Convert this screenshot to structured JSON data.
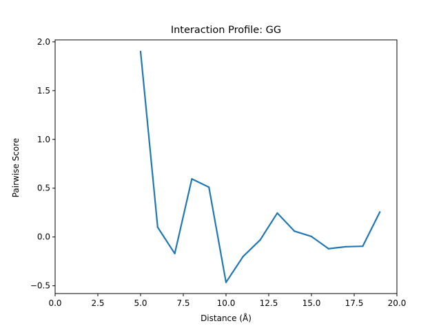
{
  "chart_data": {
    "type": "line",
    "title": "Interaction Profile: GG",
    "xlabel": "Distance (Å)",
    "ylabel": "Pairwise Score",
    "xlim": [
      0.0,
      20.0
    ],
    "ylim": [
      -0.58,
      2.02
    ],
    "x_ticks": [
      0.0,
      2.5,
      5.0,
      7.5,
      10.0,
      12.5,
      15.0,
      17.5,
      20.0
    ],
    "x_tick_labels": [
      "0.0",
      "2.5",
      "5.0",
      "7.5",
      "10.0",
      "12.5",
      "15.0",
      "17.5",
      "20.0"
    ],
    "y_ticks": [
      -0.5,
      0.0,
      0.5,
      1.0,
      1.5,
      2.0
    ],
    "y_tick_labels": [
      "−0.5",
      "0.0",
      "0.5",
      "1.0",
      "1.5",
      "2.0"
    ],
    "grid": false,
    "series": [
      {
        "color": "#1f77b4",
        "x": [
          5,
          6,
          7,
          8,
          9,
          10,
          11,
          12,
          13,
          14,
          15,
          16,
          17,
          18,
          19
        ],
        "y": [
          1.9,
          0.1,
          -0.17,
          0.595,
          0.51,
          -0.465,
          -0.2,
          -0.03,
          0.245,
          0.06,
          0.005,
          -0.12,
          -0.1,
          -0.095,
          0.255
        ]
      }
    ]
  }
}
